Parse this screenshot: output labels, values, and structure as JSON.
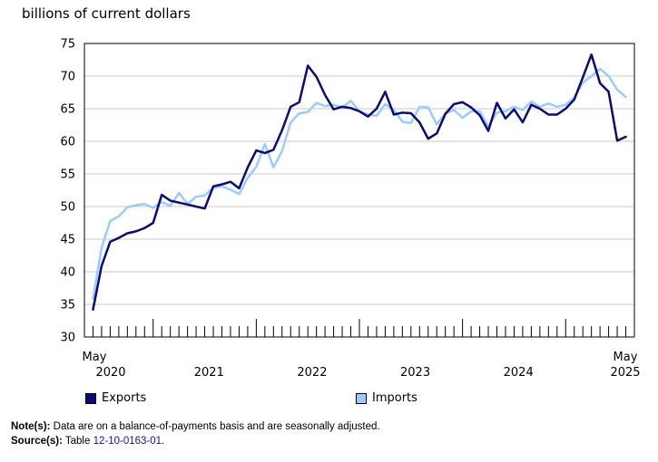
{
  "colors": {
    "exports": "#0a0a7a",
    "imports": "#99ccff"
  },
  "chart_data": {
    "type": "line",
    "ylabel": "billions of current dollars",
    "ylim": [
      30,
      75
    ],
    "yticks": [
      30,
      35,
      40,
      45,
      50,
      55,
      60,
      65,
      70,
      75
    ],
    "x_start": "2020-05",
    "x_end": "2025-05",
    "x_month_labels": [
      {
        "month": "May",
        "year": "2020"
      },
      {
        "month": "May",
        "year": "2025"
      }
    ],
    "x_year_labels": [
      "2021",
      "2022",
      "2023",
      "2024"
    ],
    "grid": "horizontal",
    "legend_position": "bottom",
    "series": [
      {
        "name": "Exports",
        "values": [
          34.2,
          40.9,
          44.6,
          45.2,
          45.9,
          46.2,
          46.7,
          47.5,
          51.8,
          50.9,
          50.6,
          50.3,
          50.0,
          49.7,
          53.1,
          53.4,
          53.8,
          52.8,
          56.0,
          58.6,
          58.2,
          58.7,
          61.7,
          65.3,
          66.0,
          71.6,
          69.9,
          67.1,
          64.9,
          65.3,
          65.1,
          64.6,
          63.8,
          65.0,
          67.6,
          64.1,
          64.4,
          64.3,
          62.9,
          60.4,
          61.2,
          64.2,
          65.7,
          66.0,
          65.2,
          64.0,
          61.6,
          65.9,
          63.5,
          64.9,
          62.9,
          65.6,
          65.0,
          64.1,
          64.1,
          65.0,
          66.4,
          69.8,
          73.3,
          68.9,
          67.6,
          60.1,
          60.7
        ]
      },
      {
        "name": "Imports",
        "values": [
          35.9,
          43.7,
          47.8,
          48.5,
          49.9,
          50.2,
          50.4,
          49.8,
          50.7,
          50.1,
          52.1,
          50.4,
          51.5,
          51.7,
          52.9,
          53.1,
          52.6,
          51.9,
          54.4,
          56.1,
          59.6,
          56.0,
          58.5,
          62.9,
          64.3,
          64.5,
          65.9,
          65.4,
          65.6,
          65.2,
          66.2,
          64.6,
          64.1,
          63.9,
          65.7,
          64.8,
          63.0,
          62.8,
          65.3,
          65.2,
          62.6,
          64.3,
          64.8,
          63.6,
          64.6,
          64.6,
          62.3,
          64.4,
          64.6,
          65.3,
          64.8,
          66.1,
          65.3,
          65.8,
          65.3,
          65.6,
          66.7,
          69.0,
          70.0,
          71.1,
          70.0,
          67.9,
          66.8
        ]
      }
    ]
  },
  "legend": {
    "exports": "Exports",
    "imports": "Imports"
  },
  "notes": {
    "note_label": "Note(s):",
    "note_text": "Data are on a balance-of-payments basis and are seasonally adjusted.",
    "source_label": "Source(s):",
    "source_prefix": "Table",
    "source_link": "12-10-0163-01",
    "source_suffix": "."
  }
}
